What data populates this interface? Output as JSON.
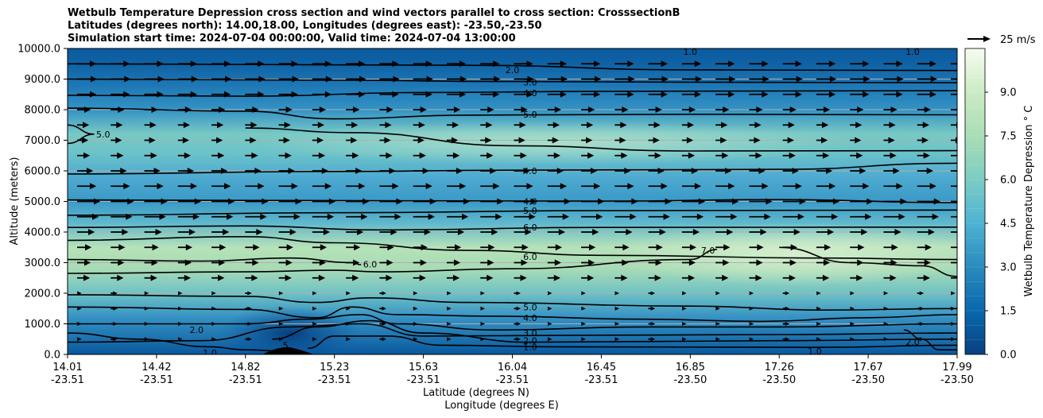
{
  "title_lines": [
    "Wetbulb Temperature Depression cross section and wind vectors parallel to cross section: CrosssectionB",
    "Latitudes (degrees north): 14.00,18.00, Longitudes (degrees east): -23.50,-23.50",
    "Simulation start time: 2024-07-04 00:00:00, Valid time: 2024-07-04 13:00:00"
  ],
  "quiver_key": "25 m/s",
  "colors": {
    "cmap_low": "#08529c",
    "cmap_mid": "#4aa9cf",
    "cmap_high": "#f7fcf0",
    "contour": "#000000",
    "grid": "#b0b0b0"
  },
  "chart_data": {
    "type": "heatmap",
    "subtype": "filled contour cross section with wind vectors",
    "ylabel": "Altitude (meters)",
    "xlabel_line1": "Latitude (degrees N)",
    "xlabel_line2": "Longitude (degrees E)",
    "ylim": [
      0,
      10000
    ],
    "yticks": [
      "0.0",
      "1000.0",
      "2000.0",
      "3000.0",
      "4000.0",
      "5000.0",
      "6000.0",
      "7000.0",
      "8000.0",
      "9000.0",
      "10000.0"
    ],
    "xticks": [
      {
        "lat": "14.01",
        "lon": "-23.51"
      },
      {
        "lat": "14.42",
        "lon": "-23.51"
      },
      {
        "lat": "14.82",
        "lon": "-23.51"
      },
      {
        "lat": "15.23",
        "lon": "-23.51"
      },
      {
        "lat": "15.63",
        "lon": "-23.51"
      },
      {
        "lat": "16.04",
        "lon": "-23.51"
      },
      {
        "lat": "16.45",
        "lon": "-23.51"
      },
      {
        "lat": "16.85",
        "lon": "-23.50"
      },
      {
        "lat": "17.26",
        "lon": "-23.50"
      },
      {
        "lat": "17.67",
        "lon": "-23.50"
      },
      {
        "lat": "17.99",
        "lon": "-23.50"
      }
    ],
    "colorbar": {
      "label": "Wetbulb Temperature Depression ° C",
      "range": [
        0,
        10.5
      ],
      "ticks": [
        "0.0",
        "1.5",
        "3.0",
        "4.5",
        "6.0",
        "7.5",
        "9.0"
      ]
    },
    "grid": "horizontal",
    "contour_labels": [
      {
        "text": "1.0",
        "alt": 9900,
        "pos": 0.7
      },
      {
        "text": "1.0",
        "alt": 9900,
        "pos": 0.95
      },
      {
        "text": "2.0",
        "alt": 9300,
        "pos": 0.5
      },
      {
        "text": "3.0",
        "alt": 8900,
        "pos": 0.52
      },
      {
        "text": "4.0",
        "alt": 8550,
        "pos": 0.52
      },
      {
        "text": "5.0",
        "alt": 7850,
        "pos": 0.52
      },
      {
        "text": "5.0",
        "alt": 7200,
        "pos": 0.04
      },
      {
        "text": "4.0",
        "alt": 6000,
        "pos": 0.52
      },
      {
        "text": "4.0",
        "alt": 5000,
        "pos": 0.52
      },
      {
        "text": "5.0",
        "alt": 4700,
        "pos": 0.52
      },
      {
        "text": "6.0",
        "alt": 4150,
        "pos": 0.52
      },
      {
        "text": "6.0",
        "alt": 3200,
        "pos": 0.52
      },
      {
        "text": "6.0",
        "alt": 2950,
        "pos": 0.34
      },
      {
        "text": "7.0",
        "alt": 3400,
        "pos": 0.72
      },
      {
        "text": "5.0",
        "alt": 1550,
        "pos": 0.52
      },
      {
        "text": "4.0",
        "alt": 1200,
        "pos": 0.52
      },
      {
        "text": "3.0",
        "alt": 700,
        "pos": 0.52
      },
      {
        "text": "2.0",
        "alt": 450,
        "pos": 0.52
      },
      {
        "text": "1.0",
        "alt": 250,
        "pos": 0.52
      },
      {
        "text": "2.0",
        "alt": 800,
        "pos": 0.145
      },
      {
        "text": "1.0",
        "alt": 50,
        "pos": 0.16
      },
      {
        "text": "1.0",
        "alt": 100,
        "pos": 0.84
      },
      {
        "text": "2.0",
        "alt": 400,
        "pos": 0.95
      },
      {
        "text": "5",
        "alt": 300,
        "pos": 0.245
      }
    ]
  }
}
